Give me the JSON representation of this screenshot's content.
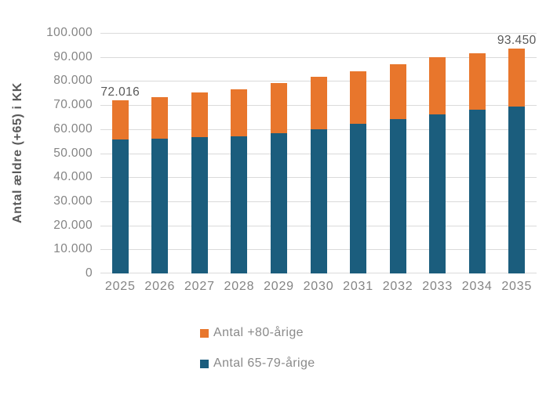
{
  "chart_data": {
    "type": "bar",
    "stacked": true,
    "title": "",
    "ylabel": "Antal ældre (+65) i KK",
    "xlabel": "",
    "categories": [
      "2025",
      "2026",
      "2027",
      "2028",
      "2029",
      "2030",
      "2031",
      "2032",
      "2033",
      "2034",
      "2035"
    ],
    "series": [
      {
        "name": "Antal 65-79-årige",
        "color": "#1B5D7D",
        "values": [
          55700,
          56100,
          56600,
          57100,
          58400,
          60000,
          62100,
          64300,
          66200,
          68100,
          69500
        ]
      },
      {
        "name": "Antal +80-årige",
        "color": "#E8762C",
        "values": [
          16316,
          17300,
          18700,
          19600,
          20800,
          21700,
          22100,
          22800,
          23600,
          23400,
          23950
        ]
      }
    ],
    "totals": [
      72016,
      73400,
      75300,
      76700,
      79200,
      81700,
      84200,
      87100,
      89800,
      91500,
      93450
    ],
    "data_labels": [
      {
        "index": 0,
        "text": "72.016"
      },
      {
        "index": 10,
        "text": "93.450"
      }
    ],
    "ylim": [
      0,
      100000
    ],
    "ytick_step": 10000,
    "ytick_labels": [
      "100.000",
      "90.000",
      "80.000",
      "70.000",
      "60.000",
      "50.000",
      "40.000",
      "30.000",
      "20.000",
      "10.000",
      "0"
    ],
    "grid": true,
    "legend_position": "bottom",
    "legend": [
      {
        "label": "Antal +80-årige",
        "color": "#E8762C"
      },
      {
        "label": "Antal 65-79-årige",
        "color": "#1B5D7D"
      }
    ]
  },
  "colors": {
    "bar_orange": "#E8762C",
    "bar_blue": "#1B5D7D",
    "gridline": "#DADADA",
    "axis_text": "#848484",
    "data_label_text": "#595959",
    "background": "#FFFFFF"
  }
}
